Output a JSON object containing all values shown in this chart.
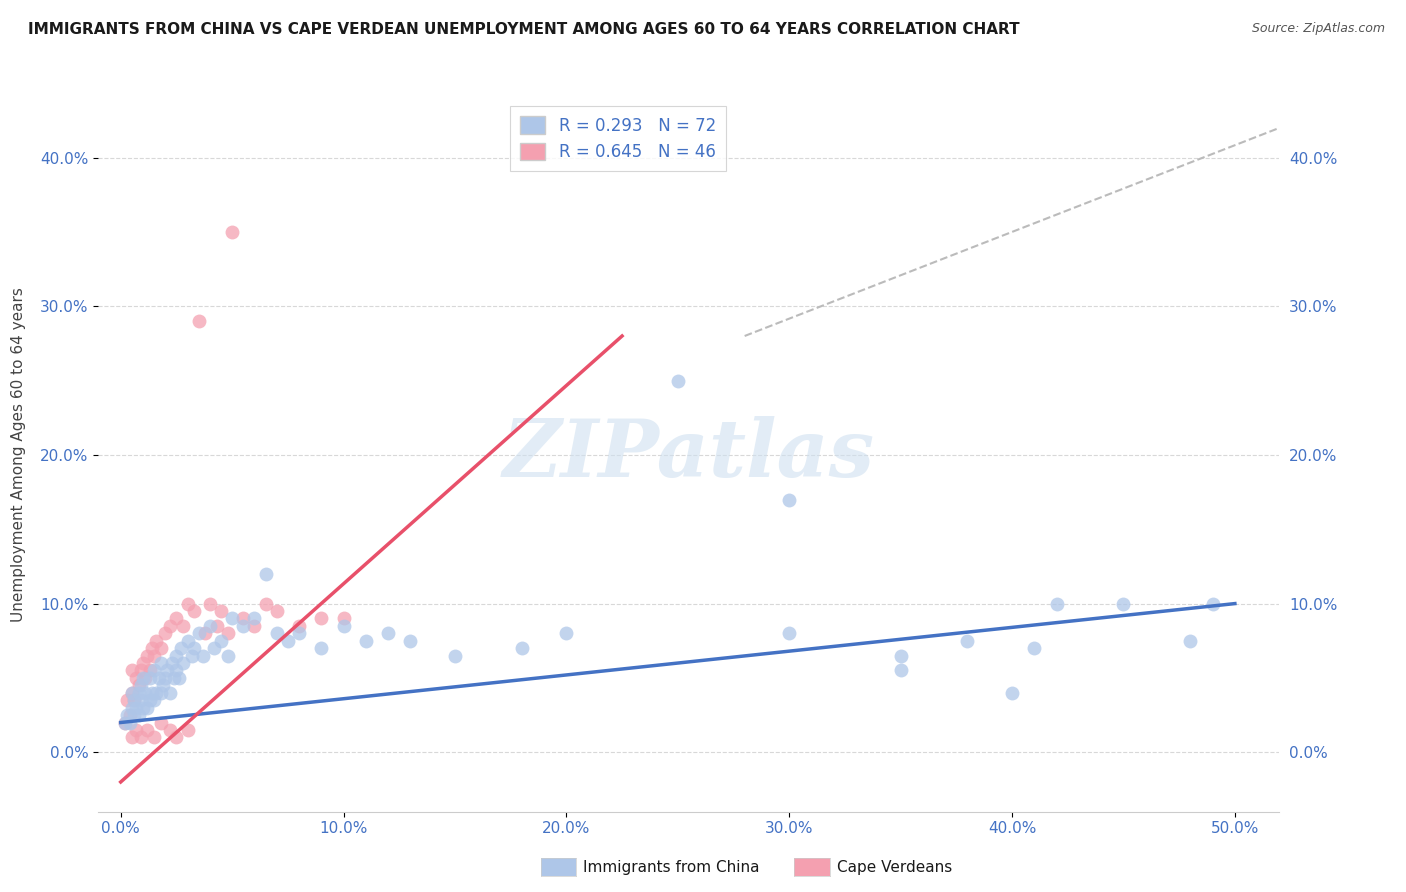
{
  "title": "IMMIGRANTS FROM CHINA VS CAPE VERDEAN UNEMPLOYMENT AMONG AGES 60 TO 64 YEARS CORRELATION CHART",
  "source": "Source: ZipAtlas.com",
  "xlabel_ticks": [
    "0.0%",
    "10.0%",
    "20.0%",
    "30.0%",
    "40.0%",
    "50.0%"
  ],
  "xlabel_vals": [
    0.0,
    0.1,
    0.2,
    0.3,
    0.4,
    0.5
  ],
  "ylabel": "Unemployment Among Ages 60 to 64 years",
  "ylabel_ticks": [
    "0.0%",
    "10.0%",
    "20.0%",
    "30.0%",
    "40.0%"
  ],
  "ylabel_vals": [
    0.0,
    0.1,
    0.2,
    0.3,
    0.4
  ],
  "xlim": [
    -0.01,
    0.52
  ],
  "ylim": [
    -0.04,
    0.44
  ],
  "china_R": 0.293,
  "china_N": 72,
  "cv_R": 0.645,
  "cv_N": 46,
  "china_color": "#aec6e8",
  "cv_color": "#f4a0b0",
  "china_line_color": "#4472c4",
  "cv_line_color": "#e8506a",
  "background_color": "#ffffff",
  "grid_color": "#d8d8d8",
  "legend_edge_color": "#cccccc",
  "title_color": "#1a1a1a",
  "source_color": "#555555",
  "tick_color": "#4472c4",
  "ylabel_color": "#444444",
  "watermark_color": "#cfe0f0",
  "china_line_start_x": 0.0,
  "china_line_start_y": 0.02,
  "china_line_end_x": 0.5,
  "china_line_end_y": 0.1,
  "cv_line_start_x": 0.0,
  "cv_line_start_y": -0.02,
  "cv_line_end_x": 0.225,
  "cv_line_end_y": 0.28,
  "dash_line_start_x": 0.28,
  "dash_line_start_y": 0.28,
  "dash_line_end_x": 0.52,
  "dash_line_end_y": 0.42,
  "china_scatter_x": [
    0.002,
    0.003,
    0.004,
    0.005,
    0.005,
    0.006,
    0.006,
    0.007,
    0.008,
    0.008,
    0.009,
    0.009,
    0.01,
    0.01,
    0.011,
    0.012,
    0.013,
    0.013,
    0.014,
    0.015,
    0.015,
    0.016,
    0.017,
    0.018,
    0.018,
    0.019,
    0.02,
    0.021,
    0.022,
    0.023,
    0.024,
    0.025,
    0.025,
    0.026,
    0.027,
    0.028,
    0.03,
    0.032,
    0.033,
    0.035,
    0.037,
    0.04,
    0.042,
    0.045,
    0.048,
    0.05,
    0.055,
    0.06,
    0.065,
    0.07,
    0.075,
    0.08,
    0.09,
    0.1,
    0.11,
    0.12,
    0.13,
    0.15,
    0.18,
    0.2,
    0.25,
    0.3,
    0.35,
    0.38,
    0.4,
    0.42,
    0.45,
    0.48,
    0.3,
    0.35,
    0.41,
    0.49
  ],
  "china_scatter_y": [
    0.02,
    0.025,
    0.02,
    0.03,
    0.04,
    0.025,
    0.035,
    0.03,
    0.04,
    0.025,
    0.035,
    0.045,
    0.03,
    0.05,
    0.04,
    0.03,
    0.05,
    0.035,
    0.04,
    0.035,
    0.055,
    0.04,
    0.05,
    0.04,
    0.06,
    0.045,
    0.05,
    0.055,
    0.04,
    0.06,
    0.05,
    0.055,
    0.065,
    0.05,
    0.07,
    0.06,
    0.075,
    0.065,
    0.07,
    0.08,
    0.065,
    0.085,
    0.07,
    0.075,
    0.065,
    0.09,
    0.085,
    0.09,
    0.12,
    0.08,
    0.075,
    0.08,
    0.07,
    0.085,
    0.075,
    0.08,
    0.075,
    0.065,
    0.07,
    0.08,
    0.25,
    0.17,
    0.055,
    0.075,
    0.04,
    0.1,
    0.1,
    0.075,
    0.08,
    0.065,
    0.07,
    0.1
  ],
  "cv_scatter_x": [
    0.002,
    0.003,
    0.004,
    0.005,
    0.005,
    0.006,
    0.007,
    0.008,
    0.009,
    0.01,
    0.011,
    0.012,
    0.013,
    0.014,
    0.015,
    0.016,
    0.018,
    0.02,
    0.022,
    0.025,
    0.028,
    0.03,
    0.033,
    0.035,
    0.038,
    0.04,
    0.043,
    0.045,
    0.048,
    0.05,
    0.055,
    0.06,
    0.065,
    0.07,
    0.08,
    0.09,
    0.1,
    0.005,
    0.007,
    0.009,
    0.012,
    0.015,
    0.018,
    0.022,
    0.025,
    0.03
  ],
  "cv_scatter_y": [
    0.02,
    0.035,
    0.025,
    0.04,
    0.055,
    0.035,
    0.05,
    0.045,
    0.055,
    0.06,
    0.05,
    0.065,
    0.055,
    0.07,
    0.065,
    0.075,
    0.07,
    0.08,
    0.085,
    0.09,
    0.085,
    0.1,
    0.095,
    0.29,
    0.08,
    0.1,
    0.085,
    0.095,
    0.08,
    0.35,
    0.09,
    0.085,
    0.1,
    0.095,
    0.085,
    0.09,
    0.09,
    0.01,
    0.015,
    0.01,
    0.015,
    0.01,
    0.02,
    0.015,
    0.01,
    0.015
  ]
}
